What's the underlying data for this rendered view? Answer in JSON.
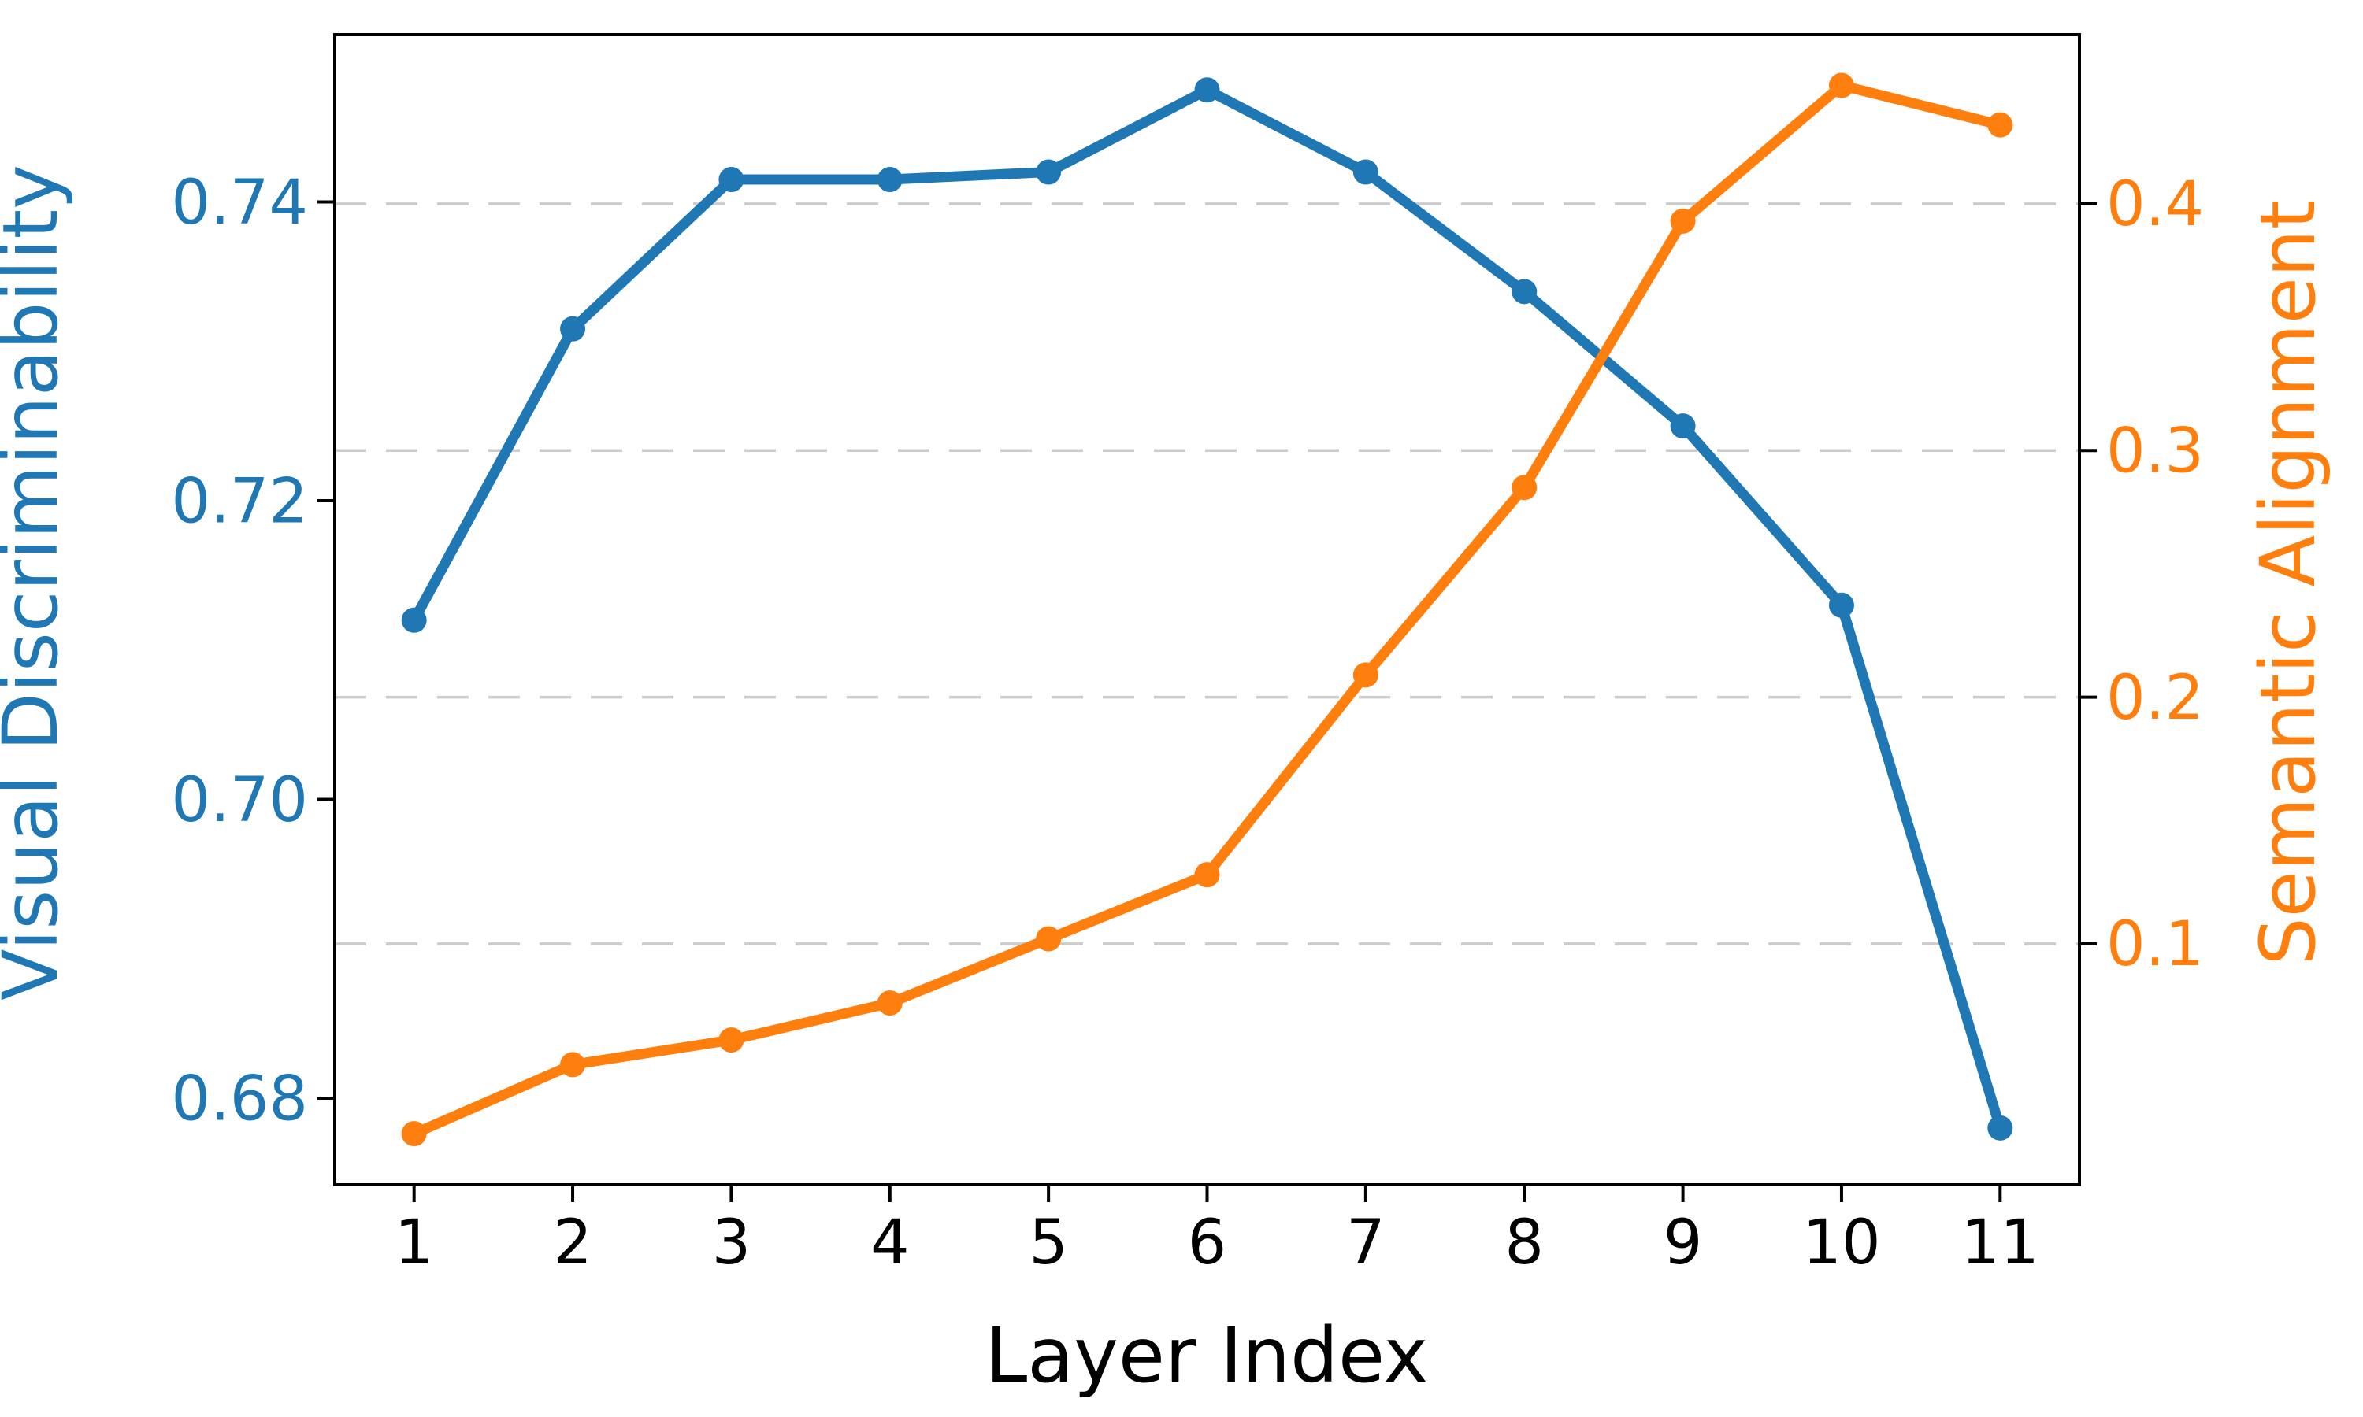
{
  "figure": {
    "background": "#ffffff",
    "spine_color": "#000000",
    "grid_color": "#cccccc"
  },
  "chart_data": {
    "type": "line",
    "title": "",
    "xlabel": "Layer Index",
    "x": [
      1,
      2,
      3,
      4,
      5,
      6,
      7,
      8,
      9,
      10,
      11
    ],
    "x_tick_labels": [
      "1",
      "2",
      "3",
      "4",
      "5",
      "6",
      "7",
      "8",
      "9",
      "10",
      "11"
    ],
    "x_range": [
      0.5,
      11.5
    ],
    "grid": {
      "show": true,
      "axis": "right",
      "style": "dashed",
      "color": "#cccccc"
    },
    "legend": {
      "show": false
    },
    "left_axis": {
      "label": "Visual Discriminability",
      "color": "#1f77b4",
      "ticks": [
        0.68,
        0.7,
        0.72,
        0.74
      ],
      "tick_labels": [
        "0.68",
        "0.70",
        "0.72",
        "0.74"
      ],
      "range": [
        0.6742,
        0.7512
      ]
    },
    "right_axis": {
      "label": "Semantic Alignment",
      "color": "#ff7f0e",
      "ticks": [
        0.1,
        0.2,
        0.3,
        0.4
      ],
      "tick_labels": [
        "0.1",
        "0.2",
        "0.3",
        "0.4"
      ],
      "range": [
        0.0023,
        0.4686
      ]
    },
    "series": [
      {
        "name": "Visual Discriminability",
        "slug": "visual-discriminability",
        "axis": "left",
        "color": "#1f77b4",
        "marker": "circle",
        "values": [
          0.712,
          0.7315,
          0.7415,
          0.7415,
          0.742,
          0.7475,
          0.742,
          0.734,
          0.725,
          0.713,
          0.678
        ]
      },
      {
        "name": "Semantic Alignment",
        "slug": "semantic-alignment",
        "axis": "right",
        "color": "#ff7f0e",
        "marker": "circle",
        "values": [
          0.023,
          0.051,
          0.061,
          0.076,
          0.102,
          0.128,
          0.209,
          0.285,
          0.393,
          0.448,
          0.432
        ]
      }
    ]
  }
}
